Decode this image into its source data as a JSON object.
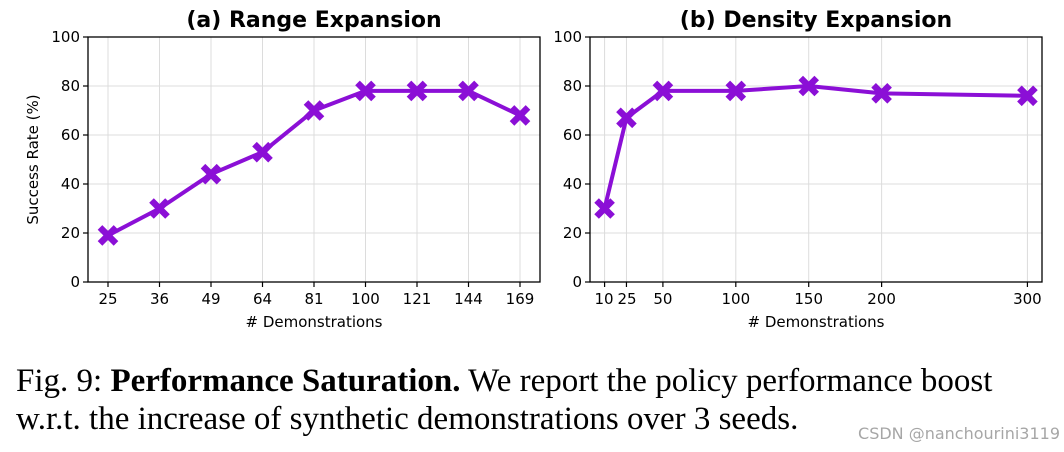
{
  "chart_data": [
    {
      "type": "line",
      "title": "(a) Range Expansion",
      "xlabel": "# Demonstrations",
      "ylabel": "Success Rate (%)",
      "ylim": [
        0,
        100
      ],
      "yticks": [
        0,
        20,
        40,
        60,
        80,
        100
      ],
      "x_scale": "categorical",
      "categories": [
        "25",
        "36",
        "49",
        "64",
        "81",
        "100",
        "121",
        "144",
        "169"
      ],
      "series": [
        {
          "values": [
            19,
            30,
            44,
            53,
            70,
            78,
            78,
            78,
            68
          ]
        }
      ],
      "grid": true,
      "marker": "X",
      "color": "#8B0FD6"
    },
    {
      "type": "line",
      "title": "(b) Density Expansion",
      "xlabel": "# Demonstrations",
      "ylabel": "",
      "ylim": [
        0,
        100
      ],
      "yticks": [
        0,
        20,
        40,
        60,
        80,
        100
      ],
      "x_scale": "linear",
      "xlim": [
        0,
        310
      ],
      "xticks": [
        "10",
        "25",
        "50",
        "100",
        "150",
        "200",
        "300"
      ],
      "x": [
        10,
        25,
        50,
        100,
        150,
        200,
        300
      ],
      "series": [
        {
          "values": [
            30,
            67,
            78,
            78,
            80,
            77,
            76
          ]
        }
      ],
      "grid": true,
      "marker": "X",
      "color": "#8B0FD6"
    }
  ],
  "caption": {
    "label": "Fig. 9: ",
    "bold": "Performance Saturation.",
    "text": " We report the policy performance boost w.r.t. the increase of synthetic demonstrations over 3 seeds."
  },
  "watermark": "CSDN @nanchourini3119"
}
